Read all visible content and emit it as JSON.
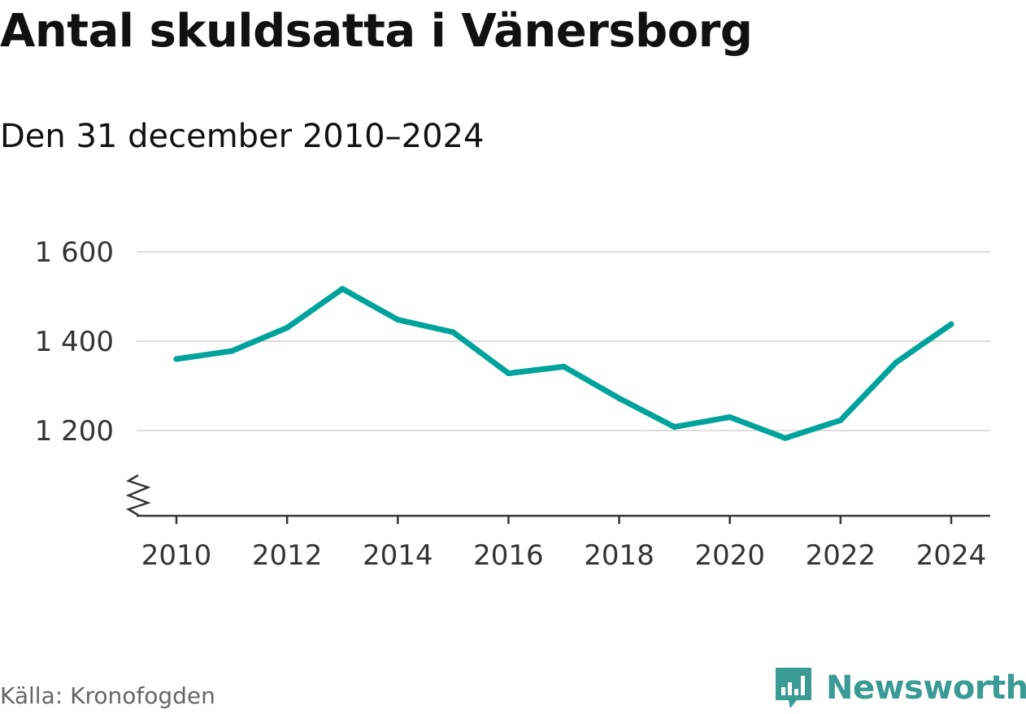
{
  "title": "Antal skuldsatta i Vänersborg",
  "subtitle": "Den 31 december 2010–2024",
  "source": "Källa: Kronofogden",
  "brand": {
    "name": "Newsworthy",
    "icon": "newsworthy-logo-icon",
    "color": "#3a9a94"
  },
  "colors": {
    "line": "#00a39b",
    "grid": "#dddddd",
    "axis": "#333333"
  },
  "chart_data": {
    "type": "line",
    "title": "Antal skuldsatta i Vänersborg",
    "subtitle": "Den 31 december 2010–2024",
    "xlabel": "",
    "ylabel": "",
    "x": [
      2010,
      2011,
      2012,
      2013,
      2014,
      2015,
      2016,
      2017,
      2018,
      2019,
      2020,
      2021,
      2022,
      2023,
      2024
    ],
    "values": [
      1360,
      1378,
      1430,
      1517,
      1448,
      1420,
      1328,
      1343,
      1272,
      1208,
      1230,
      1183,
      1223,
      1352,
      1438
    ],
    "ylim": [
      1100,
      1600
    ],
    "y_ticks": [
      1200,
      1400,
      1600
    ],
    "y_tick_labels": [
      "1 200",
      "1 400",
      "1 600"
    ],
    "x_ticks": [
      2010,
      2012,
      2014,
      2016,
      2018,
      2020,
      2022,
      2024
    ],
    "x_tick_labels": [
      "2010",
      "2012",
      "2014",
      "2016",
      "2018",
      "2020",
      "2022",
      "2024"
    ],
    "grid": true,
    "axis_break": true
  }
}
